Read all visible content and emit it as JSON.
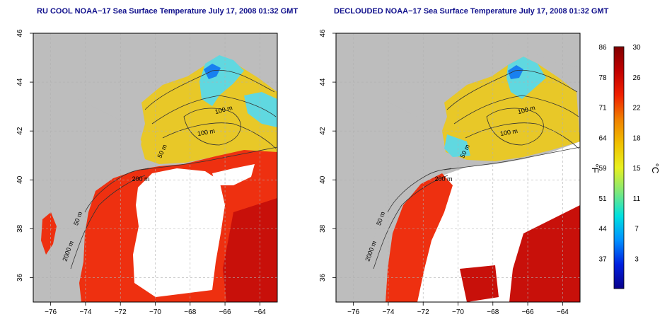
{
  "panels": [
    {
      "title": "RU COOL NOAA−17 Sea Surface Temperature July 17, 2008 01:32 GMT",
      "contour_labels": [
        "100 m",
        "100 m",
        "50 m",
        "200 m",
        "50 m",
        "2000 m"
      ]
    },
    {
      "title": "DECLOUDED NOAA−17 Sea Surface Temperature July 17, 2008 01:32 GMT",
      "contour_labels": [
        "100 m",
        "100 m",
        "50 m",
        "200 m",
        "50 m",
        "2000 m"
      ]
    }
  ],
  "axes": {
    "lon_ticks": [
      "−76",
      "−74",
      "−72",
      "−70",
      "−68",
      "−66",
      "−64"
    ],
    "lat_ticks": [
      "46",
      "44",
      "42",
      "40",
      "38",
      "36"
    ]
  },
  "colorbar": {
    "fahrenheit_label": "°F",
    "celsius_label": "°C",
    "fahrenheit_ticks": [
      "86",
      "78",
      "71",
      "64",
      "59",
      "51",
      "44",
      "37"
    ],
    "celsius_ticks": [
      "30",
      "26",
      "22",
      "18",
      "15",
      "11",
      "7",
      "3"
    ],
    "colors": [
      "#08008a",
      "#0020e0",
      "#0090ff",
      "#00e0e0",
      "#7fe87a",
      "#e8f020",
      "#f0c000",
      "#f08000",
      "#f02000",
      "#c00000",
      "#800000"
    ]
  },
  "map_colors": {
    "land": "#bdbdbd",
    "cloud": "#ffffff",
    "warm": "#ee3010",
    "warm_dark": "#c8100a",
    "gulf_of_maine": "#e8c828",
    "cool": "#60d8e0",
    "cold": "#1880f0"
  }
}
